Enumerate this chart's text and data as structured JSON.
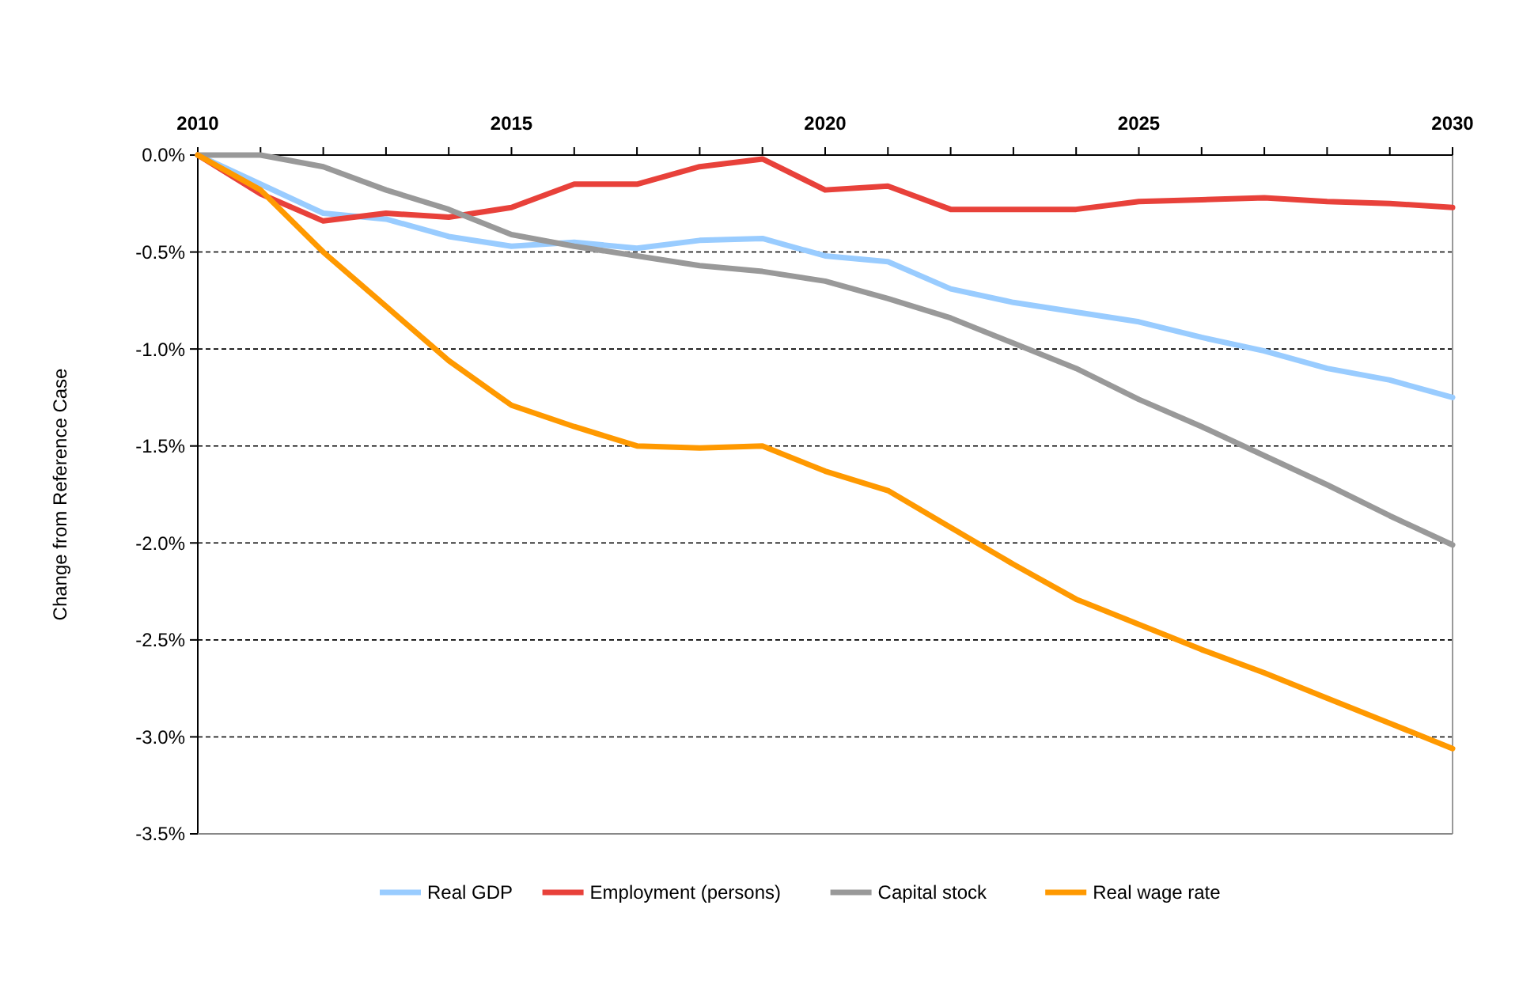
{
  "chart_data": {
    "type": "line",
    "ylabel": "Change from Reference Case",
    "x": [
      2010,
      2011,
      2012,
      2013,
      2014,
      2015,
      2016,
      2017,
      2018,
      2019,
      2020,
      2021,
      2022,
      2023,
      2024,
      2025,
      2026,
      2027,
      2028,
      2029,
      2030
    ],
    "xlim": [
      2010,
      2030
    ],
    "xticks": [
      2010,
      {
        "value": 2011,
        "label": null
      },
      {
        "value": 2012,
        "label": null
      },
      {
        "value": 2013,
        "label": null
      },
      {
        "value": 2014,
        "label": null
      },
      2015,
      {
        "value": 2016,
        "label": null
      },
      {
        "value": 2017,
        "label": null
      },
      {
        "value": 2018,
        "label": null
      },
      {
        "value": 2019,
        "label": null
      },
      2020,
      {
        "value": 2021,
        "label": null
      },
      {
        "value": 2022,
        "label": null
      },
      {
        "value": 2023,
        "label": null
      },
      {
        "value": 2024,
        "label": null
      },
      2025,
      {
        "value": 2026,
        "label": null
      },
      {
        "value": 2027,
        "label": null
      },
      {
        "value": 2028,
        "label": null
      },
      {
        "value": 2029,
        "label": null
      },
      2030
    ],
    "ylim": [
      -3.5,
      0
    ],
    "yticks": [
      {
        "value": 0,
        "label": "0.0%"
      },
      {
        "value": -0.5,
        "label": "-0.5%"
      },
      {
        "value": -1,
        "label": "-1.0%"
      },
      {
        "value": -1.5,
        "label": "-1.5%"
      },
      {
        "value": -2,
        "label": "-2.0%"
      },
      {
        "value": -2.5,
        "label": "-2.5%"
      },
      {
        "value": -3,
        "label": "-3.0%"
      },
      {
        "value": -3.5,
        "label": "-3.5%"
      }
    ],
    "grid": "y",
    "legend": "bottom",
    "line_style": "solid",
    "series": [
      {
        "name": "Real GDP",
        "color": "#99ccff",
        "values": [
          0,
          -0.15,
          -0.3,
          -0.33,
          -0.42,
          -0.47,
          -0.45,
          -0.48,
          -0.44,
          -0.43,
          -0.52,
          -0.55,
          -0.69,
          -0.76,
          -0.81,
          -0.86,
          -0.94,
          -1.01,
          -1.1,
          -1.16,
          -1.25
        ]
      },
      {
        "name": "Employment (persons)",
        "color": "#e8413a",
        "values": [
          0,
          -0.2,
          -0.34,
          -0.3,
          -0.32,
          -0.27,
          -0.15,
          -0.15,
          -0.06,
          -0.02,
          -0.18,
          -0.16,
          -0.28,
          -0.28,
          -0.28,
          -0.24,
          -0.23,
          -0.22,
          -0.24,
          -0.25,
          -0.27
        ]
      },
      {
        "name": "Capital stock",
        "color": "#999999",
        "values": [
          0,
          0,
          -0.06,
          -0.18,
          -0.28,
          -0.41,
          -0.47,
          -0.52,
          -0.57,
          -0.6,
          -0.65,
          -0.74,
          -0.84,
          -0.97,
          -1.1,
          -1.26,
          -1.4,
          -1.55,
          -1.7,
          -1.86,
          -2.01
        ]
      },
      {
        "name": "Real wage rate",
        "color": "#ff9900",
        "values": [
          0,
          -0.18,
          -0.5,
          -0.78,
          -1.06,
          -1.29,
          -1.4,
          -1.5,
          -1.51,
          -1.5,
          -1.63,
          -1.73,
          -1.92,
          -2.11,
          -2.29,
          -2.42,
          -2.55,
          -2.67,
          -2.8,
          -2.93,
          -3.06
        ]
      }
    ]
  }
}
